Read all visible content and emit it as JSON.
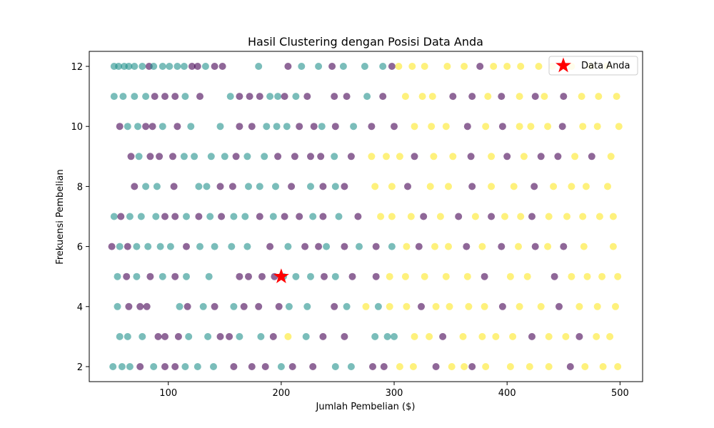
{
  "chart_data": {
    "type": "scatter",
    "title": "Hasil Clustering dengan Posisi Data Anda",
    "xlabel": "Jumlah Pembelian ($)",
    "ylabel": "Frekuensi Pembelian",
    "xlim": [
      30,
      520
    ],
    "ylim": [
      1.5,
      12.5
    ],
    "x_ticks": [
      100,
      200,
      300,
      400,
      500
    ],
    "y_ticks": [
      2,
      4,
      6,
      8,
      10,
      12
    ],
    "grid": false,
    "legend_position": "top-right",
    "legend": [
      "Data Anda"
    ],
    "cluster_colors": [
      "#440154",
      "#21918c",
      "#fde725"
    ],
    "point_alpha": 0.6,
    "points": [
      [
        52,
        12,
        1
      ],
      [
        56,
        12,
        1
      ],
      [
        61,
        12,
        1
      ],
      [
        65,
        12,
        1
      ],
      [
        70,
        12,
        1
      ],
      [
        77,
        12,
        1
      ],
      [
        83,
        12,
        0
      ],
      [
        87,
        12,
        1
      ],
      [
        95,
        12,
        1
      ],
      [
        101,
        12,
        1
      ],
      [
        108,
        12,
        1
      ],
      [
        114,
        12,
        1
      ],
      [
        121,
        12,
        0
      ],
      [
        126,
        12,
        0
      ],
      [
        133,
        12,
        1
      ],
      [
        141,
        12,
        0
      ],
      [
        148,
        12,
        0
      ],
      [
        180,
        12,
        1
      ],
      [
        206,
        12,
        0
      ],
      [
        218,
        12,
        1
      ],
      [
        233,
        12,
        1
      ],
      [
        245,
        12,
        0
      ],
      [
        255,
        12,
        1
      ],
      [
        274,
        12,
        1
      ],
      [
        290,
        12,
        1
      ],
      [
        298,
        12,
        0
      ],
      [
        304,
        12,
        2
      ],
      [
        316,
        12,
        2
      ],
      [
        327,
        12,
        2
      ],
      [
        347,
        12,
        2
      ],
      [
        362,
        12,
        2
      ],
      [
        376,
        12,
        0
      ],
      [
        388,
        12,
        2
      ],
      [
        400,
        12,
        2
      ],
      [
        412,
        12,
        2
      ],
      [
        428,
        12,
        2
      ],
      [
        440,
        12,
        2
      ],
      [
        457,
        12,
        2
      ],
      [
        474,
        12,
        2
      ],
      [
        488,
        12,
        2
      ],
      [
        52,
        11,
        1
      ],
      [
        60,
        11,
        1
      ],
      [
        70,
        11,
        1
      ],
      [
        80,
        11,
        1
      ],
      [
        88,
        11,
        0
      ],
      [
        97,
        11,
        0
      ],
      [
        106,
        11,
        0
      ],
      [
        115,
        11,
        1
      ],
      [
        128,
        11,
        0
      ],
      [
        155,
        11,
        1
      ],
      [
        163,
        11,
        0
      ],
      [
        172,
        11,
        0
      ],
      [
        181,
        11,
        0
      ],
      [
        190,
        11,
        1
      ],
      [
        197,
        11,
        1
      ],
      [
        203,
        11,
        0
      ],
      [
        213,
        11,
        1
      ],
      [
        223,
        11,
        0
      ],
      [
        247,
        11,
        0
      ],
      [
        258,
        11,
        0
      ],
      [
        276,
        11,
        1
      ],
      [
        290,
        11,
        0
      ],
      [
        310,
        11,
        2
      ],
      [
        325,
        11,
        2
      ],
      [
        334,
        11,
        2
      ],
      [
        352,
        11,
        0
      ],
      [
        369,
        11,
        0
      ],
      [
        383,
        11,
        2
      ],
      [
        395,
        11,
        0
      ],
      [
        411,
        11,
        2
      ],
      [
        425,
        11,
        0
      ],
      [
        433,
        11,
        2
      ],
      [
        450,
        11,
        0
      ],
      [
        466,
        11,
        2
      ],
      [
        481,
        11,
        2
      ],
      [
        497,
        11,
        2
      ],
      [
        57,
        10,
        0
      ],
      [
        64,
        10,
        1
      ],
      [
        73,
        10,
        1
      ],
      [
        80,
        10,
        0
      ],
      [
        86,
        10,
        0
      ],
      [
        95,
        10,
        1
      ],
      [
        108,
        10,
        0
      ],
      [
        120,
        10,
        1
      ],
      [
        146,
        10,
        1
      ],
      [
        163,
        10,
        0
      ],
      [
        174,
        10,
        0
      ],
      [
        187,
        10,
        1
      ],
      [
        196,
        10,
        1
      ],
      [
        205,
        10,
        1
      ],
      [
        216,
        10,
        0
      ],
      [
        229,
        10,
        0
      ],
      [
        236,
        10,
        1
      ],
      [
        248,
        10,
        0
      ],
      [
        264,
        10,
        1
      ],
      [
        280,
        10,
        0
      ],
      [
        300,
        10,
        0
      ],
      [
        318,
        10,
        2
      ],
      [
        333,
        10,
        2
      ],
      [
        346,
        10,
        2
      ],
      [
        365,
        10,
        0
      ],
      [
        381,
        10,
        2
      ],
      [
        396,
        10,
        0
      ],
      [
        411,
        10,
        2
      ],
      [
        421,
        10,
        2
      ],
      [
        436,
        10,
        2
      ],
      [
        449,
        10,
        0
      ],
      [
        467,
        10,
        2
      ],
      [
        480,
        10,
        2
      ],
      [
        499,
        10,
        2
      ],
      [
        67,
        9,
        0
      ],
      [
        74,
        9,
        1
      ],
      [
        84,
        9,
        0
      ],
      [
        92,
        9,
        0
      ],
      [
        104,
        9,
        0
      ],
      [
        114,
        9,
        1
      ],
      [
        123,
        9,
        1
      ],
      [
        138,
        9,
        1
      ],
      [
        150,
        9,
        1
      ],
      [
        160,
        9,
        0
      ],
      [
        170,
        9,
        1
      ],
      [
        185,
        9,
        1
      ],
      [
        197,
        9,
        0
      ],
      [
        212,
        9,
        0
      ],
      [
        226,
        9,
        0
      ],
      [
        235,
        9,
        0
      ],
      [
        247,
        9,
        1
      ],
      [
        262,
        9,
        0
      ],
      [
        280,
        9,
        2
      ],
      [
        293,
        9,
        2
      ],
      [
        305,
        9,
        2
      ],
      [
        318,
        9,
        0
      ],
      [
        335,
        9,
        2
      ],
      [
        352,
        9,
        2
      ],
      [
        368,
        9,
        0
      ],
      [
        386,
        9,
        2
      ],
      [
        400,
        9,
        0
      ],
      [
        415,
        9,
        2
      ],
      [
        430,
        9,
        0
      ],
      [
        445,
        9,
        0
      ],
      [
        460,
        9,
        2
      ],
      [
        475,
        9,
        0
      ],
      [
        492,
        9,
        2
      ],
      [
        70,
        8,
        0
      ],
      [
        80,
        8,
        1
      ],
      [
        90,
        8,
        1
      ],
      [
        105,
        8,
        0
      ],
      [
        127,
        8,
        1
      ],
      [
        134,
        8,
        1
      ],
      [
        146,
        8,
        0
      ],
      [
        157,
        8,
        0
      ],
      [
        171,
        8,
        1
      ],
      [
        181,
        8,
        1
      ],
      [
        195,
        8,
        1
      ],
      [
        209,
        8,
        0
      ],
      [
        226,
        8,
        1
      ],
      [
        237,
        8,
        0
      ],
      [
        248,
        8,
        1
      ],
      [
        256,
        8,
        0
      ],
      [
        283,
        8,
        2
      ],
      [
        298,
        8,
        2
      ],
      [
        312,
        8,
        0
      ],
      [
        332,
        8,
        2
      ],
      [
        348,
        8,
        2
      ],
      [
        369,
        8,
        0
      ],
      [
        386,
        8,
        2
      ],
      [
        406,
        8,
        2
      ],
      [
        424,
        8,
        0
      ],
      [
        441,
        8,
        2
      ],
      [
        457,
        8,
        2
      ],
      [
        470,
        8,
        2
      ],
      [
        489,
        8,
        2
      ],
      [
        52,
        7,
        1
      ],
      [
        58,
        7,
        0
      ],
      [
        66,
        7,
        1
      ],
      [
        76,
        7,
        1
      ],
      [
        89,
        7,
        1
      ],
      [
        97,
        7,
        0
      ],
      [
        106,
        7,
        0
      ],
      [
        116,
        7,
        1
      ],
      [
        127,
        7,
        0
      ],
      [
        137,
        7,
        1
      ],
      [
        147,
        7,
        0
      ],
      [
        158,
        7,
        1
      ],
      [
        168,
        7,
        1
      ],
      [
        181,
        7,
        0
      ],
      [
        193,
        7,
        1
      ],
      [
        203,
        7,
        0
      ],
      [
        216,
        7,
        0
      ],
      [
        228,
        7,
        1
      ],
      [
        237,
        7,
        0
      ],
      [
        251,
        7,
        1
      ],
      [
        268,
        7,
        0
      ],
      [
        288,
        7,
        2
      ],
      [
        298,
        7,
        2
      ],
      [
        315,
        7,
        2
      ],
      [
        326,
        7,
        0
      ],
      [
        341,
        7,
        2
      ],
      [
        357,
        7,
        0
      ],
      [
        372,
        7,
        2
      ],
      [
        386,
        7,
        0
      ],
      [
        398,
        7,
        2
      ],
      [
        412,
        7,
        2
      ],
      [
        422,
        7,
        0
      ],
      [
        437,
        7,
        2
      ],
      [
        453,
        7,
        2
      ],
      [
        467,
        7,
        2
      ],
      [
        482,
        7,
        2
      ],
      [
        494,
        7,
        2
      ],
      [
        50,
        6,
        0
      ],
      [
        57,
        6,
        1
      ],
      [
        64,
        6,
        0
      ],
      [
        72,
        6,
        1
      ],
      [
        82,
        6,
        1
      ],
      [
        93,
        6,
        1
      ],
      [
        102,
        6,
        1
      ],
      [
        116,
        6,
        0
      ],
      [
        128,
        6,
        1
      ],
      [
        141,
        6,
        1
      ],
      [
        156,
        6,
        1
      ],
      [
        170,
        6,
        1
      ],
      [
        190,
        6,
        0
      ],
      [
        206,
        6,
        1
      ],
      [
        221,
        6,
        0
      ],
      [
        233,
        6,
        0
      ],
      [
        240,
        6,
        1
      ],
      [
        256,
        6,
        0
      ],
      [
        269,
        6,
        1
      ],
      [
        284,
        6,
        0
      ],
      [
        298,
        6,
        1
      ],
      [
        311,
        6,
        2
      ],
      [
        322,
        6,
        0
      ],
      [
        336,
        6,
        2
      ],
      [
        348,
        6,
        2
      ],
      [
        364,
        6,
        0
      ],
      [
        378,
        6,
        2
      ],
      [
        395,
        6,
        0
      ],
      [
        410,
        6,
        2
      ],
      [
        425,
        6,
        0
      ],
      [
        436,
        6,
        2
      ],
      [
        450,
        6,
        0
      ],
      [
        468,
        6,
        2
      ],
      [
        494,
        6,
        2
      ],
      [
        55,
        5,
        1
      ],
      [
        63,
        5,
        0
      ],
      [
        72,
        5,
        1
      ],
      [
        84,
        5,
        0
      ],
      [
        95,
        5,
        1
      ],
      [
        106,
        5,
        0
      ],
      [
        116,
        5,
        1
      ],
      [
        136,
        5,
        1
      ],
      [
        163,
        5,
        0
      ],
      [
        171,
        5,
        0
      ],
      [
        183,
        5,
        0
      ],
      [
        194,
        5,
        0
      ],
      [
        202,
        5,
        1
      ],
      [
        213,
        5,
        1
      ],
      [
        226,
        5,
        1
      ],
      [
        238,
        5,
        0
      ],
      [
        248,
        5,
        1
      ],
      [
        263,
        5,
        0
      ],
      [
        284,
        5,
        0
      ],
      [
        296,
        5,
        2
      ],
      [
        310,
        5,
        2
      ],
      [
        327,
        5,
        2
      ],
      [
        346,
        5,
        2
      ],
      [
        365,
        5,
        2
      ],
      [
        380,
        5,
        0
      ],
      [
        403,
        5,
        2
      ],
      [
        418,
        5,
        2
      ],
      [
        442,
        5,
        0
      ],
      [
        457,
        5,
        2
      ],
      [
        471,
        5,
        2
      ],
      [
        484,
        5,
        2
      ],
      [
        498,
        5,
        2
      ],
      [
        55,
        4,
        1
      ],
      [
        65,
        4,
        0
      ],
      [
        75,
        4,
        0
      ],
      [
        81,
        4,
        0
      ],
      [
        110,
        4,
        1
      ],
      [
        117,
        4,
        0
      ],
      [
        131,
        4,
        1
      ],
      [
        141,
        4,
        0
      ],
      [
        158,
        4,
        1
      ],
      [
        167,
        4,
        0
      ],
      [
        180,
        4,
        0
      ],
      [
        198,
        4,
        0
      ],
      [
        207,
        4,
        1
      ],
      [
        223,
        4,
        1
      ],
      [
        247,
        4,
        0
      ],
      [
        258,
        4,
        1
      ],
      [
        275,
        4,
        2
      ],
      [
        286,
        4,
        1
      ],
      [
        296,
        4,
        2
      ],
      [
        311,
        4,
        2
      ],
      [
        324,
        4,
        0
      ],
      [
        337,
        4,
        2
      ],
      [
        349,
        4,
        2
      ],
      [
        366,
        4,
        2
      ],
      [
        380,
        4,
        2
      ],
      [
        396,
        4,
        0
      ],
      [
        411,
        4,
        2
      ],
      [
        430,
        4,
        2
      ],
      [
        446,
        4,
        0
      ],
      [
        464,
        4,
        2
      ],
      [
        480,
        4,
        2
      ],
      [
        496,
        4,
        2
      ],
      [
        57,
        3,
        1
      ],
      [
        64,
        3,
        1
      ],
      [
        77,
        3,
        1
      ],
      [
        91,
        3,
        0
      ],
      [
        97,
        3,
        0
      ],
      [
        109,
        3,
        0
      ],
      [
        118,
        3,
        1
      ],
      [
        135,
        3,
        1
      ],
      [
        146,
        3,
        0
      ],
      [
        154,
        3,
        0
      ],
      [
        163,
        3,
        1
      ],
      [
        182,
        3,
        1
      ],
      [
        193,
        3,
        0
      ],
      [
        206,
        3,
        2
      ],
      [
        222,
        3,
        1
      ],
      [
        237,
        3,
        0
      ],
      [
        256,
        3,
        0
      ],
      [
        283,
        3,
        1
      ],
      [
        294,
        3,
        1
      ],
      [
        300,
        3,
        1
      ],
      [
        318,
        3,
        2
      ],
      [
        331,
        3,
        2
      ],
      [
        343,
        3,
        0
      ],
      [
        361,
        3,
        2
      ],
      [
        378,
        3,
        2
      ],
      [
        390,
        3,
        2
      ],
      [
        405,
        3,
        2
      ],
      [
        422,
        3,
        0
      ],
      [
        437,
        3,
        2
      ],
      [
        452,
        3,
        2
      ],
      [
        464,
        3,
        0
      ],
      [
        479,
        3,
        2
      ],
      [
        491,
        3,
        2
      ],
      [
        51,
        2,
        1
      ],
      [
        59,
        2,
        1
      ],
      [
        66,
        2,
        1
      ],
      [
        75,
        2,
        0
      ],
      [
        87,
        2,
        1
      ],
      [
        97,
        2,
        0
      ],
      [
        106,
        2,
        0
      ],
      [
        115,
        2,
        1
      ],
      [
        126,
        2,
        1
      ],
      [
        140,
        2,
        1
      ],
      [
        158,
        2,
        0
      ],
      [
        174,
        2,
        0
      ],
      [
        186,
        2,
        0
      ],
      [
        200,
        2,
        1
      ],
      [
        210,
        2,
        0
      ],
      [
        228,
        2,
        0
      ],
      [
        248,
        2,
        1
      ],
      [
        262,
        2,
        1
      ],
      [
        281,
        2,
        0
      ],
      [
        291,
        2,
        0
      ],
      [
        305,
        2,
        2
      ],
      [
        317,
        2,
        2
      ],
      [
        337,
        2,
        0
      ],
      [
        351,
        2,
        2
      ],
      [
        362,
        2,
        2
      ],
      [
        369,
        2,
        0
      ],
      [
        381,
        2,
        2
      ],
      [
        403,
        2,
        2
      ],
      [
        420,
        2,
        2
      ],
      [
        437,
        2,
        2
      ],
      [
        456,
        2,
        0
      ],
      [
        469,
        2,
        2
      ],
      [
        485,
        2,
        2
      ],
      [
        498,
        2,
        2
      ]
    ],
    "highlight": {
      "name": "Data Anda",
      "x": 200,
      "y": 5,
      "color": "#ff0000"
    }
  }
}
